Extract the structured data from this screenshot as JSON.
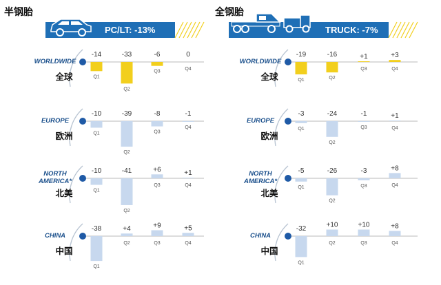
{
  "colors": {
    "banner_blue": "#1f6fb6",
    "yellow_bar": "#f2cf1d",
    "light_blue_bar": "#c7d8ee",
    "dot_blue": "#1f5aa6",
    "arc_grey": "#b8c4d2"
  },
  "icons": [
    "car-icon",
    "truck-icon"
  ],
  "panels": [
    {
      "title": "半钢胎",
      "banner": "PC/LT: -13%",
      "vehicle": "car",
      "regions": [
        {
          "name": "WORLDWIDE",
          "cn": "全球",
          "values": [
            "-14",
            "-33",
            "-6",
            "0"
          ],
          "color": "yellow"
        },
        {
          "name": "EUROPE",
          "cn": "欧洲",
          "values": [
            "-10",
            "-39",
            "-8",
            "-1"
          ],
          "color": "blue"
        },
        {
          "name": "NORTH AMERICA*",
          "cn": "北美",
          "values": [
            "-10",
            "-41",
            "+6",
            "+1"
          ],
          "color": "blue"
        },
        {
          "name": "CHINA",
          "cn": "中国",
          "values": [
            "-38",
            "+4",
            "+9",
            "+5"
          ],
          "color": "blue"
        }
      ]
    },
    {
      "title": "全钢胎",
      "banner": "TRUCK: -7%",
      "vehicle": "truck",
      "regions": [
        {
          "name": "WORLDWIDE",
          "cn": "全球",
          "values": [
            "-19",
            "-16",
            "+1",
            "+3"
          ],
          "color": "yellow"
        },
        {
          "name": "EUROPE",
          "cn": "欧洲",
          "values": [
            "-3",
            "-24",
            "-1",
            "+1"
          ],
          "color": "blue"
        },
        {
          "name": "NORTH AMERICA*",
          "cn": "北美",
          "values": [
            "-5",
            "-26",
            "-3",
            "+8"
          ],
          "color": "blue"
        },
        {
          "name": "CHINA",
          "cn": "中国",
          "values": [
            "-32",
            "+10",
            "+10",
            "+8"
          ],
          "color": "blue"
        }
      ]
    }
  ],
  "chart_data": [
    {
      "type": "bar",
      "title": "半钢胎",
      "subtitle": "PC/LT: -13%",
      "categories": [
        "Q1",
        "Q2",
        "Q3",
        "Q4"
      ],
      "series": [
        {
          "name": "WORLDWIDE 全球",
          "values": [
            -14,
            -33,
            -6,
            0
          ]
        },
        {
          "name": "EUROPE 欧洲",
          "values": [
            -10,
            -39,
            -8,
            -1
          ]
        },
        {
          "name": "NORTH AMERICA* 北美",
          "values": [
            -10,
            -41,
            6,
            1
          ]
        },
        {
          "name": "CHINA 中国",
          "values": [
            -38,
            4,
            9,
            5
          ]
        }
      ]
    },
    {
      "type": "bar",
      "title": "全钢胎",
      "subtitle": "TRUCK: -7%",
      "categories": [
        "Q1",
        "Q2",
        "Q3",
        "Q4"
      ],
      "series": [
        {
          "name": "WORLDWIDE 全球",
          "values": [
            -19,
            -16,
            1,
            3
          ]
        },
        {
          "name": "EUROPE 欧洲",
          "values": [
            -3,
            -24,
            -1,
            1
          ]
        },
        {
          "name": "NORTH AMERICA* 北美",
          "values": [
            -5,
            -26,
            -3,
            8
          ]
        },
        {
          "name": "CHINA 中国",
          "values": [
            -32,
            10,
            10,
            8
          ]
        }
      ]
    }
  ]
}
